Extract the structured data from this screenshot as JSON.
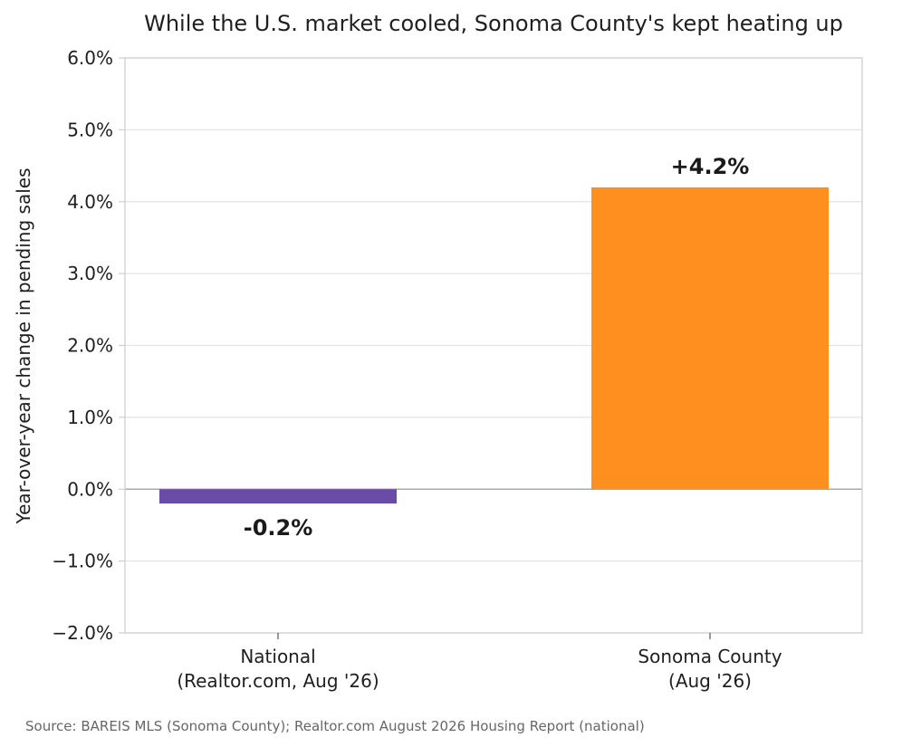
{
  "chart_data": {
    "type": "bar",
    "title": "While the U.S. market cooled, Sonoma County's kept heating up",
    "ylabel": "Year-over-year change in pending sales",
    "xlabel": "",
    "categories": [
      [
        "National",
        "(Realtor.com, Aug '26)"
      ],
      [
        "Sonoma County",
        "(Aug '26)"
      ]
    ],
    "values": [
      -0.2,
      4.2
    ],
    "data_labels": [
      "-0.2%",
      "+4.2%"
    ],
    "bar_colors": [
      "#6a4ca8",
      "#ff9020"
    ],
    "ylim": [
      -2.0,
      6.0
    ],
    "yticks": [
      -2.0,
      -1.0,
      0.0,
      1.0,
      2.0,
      3.0,
      4.0,
      5.0,
      6.0
    ],
    "ytick_labels": [
      "−2.0%",
      "−1.0%",
      "0.0%",
      "1.0%",
      "2.0%",
      "3.0%",
      "4.0%",
      "5.0%",
      "6.0%"
    ],
    "grid": true,
    "legend": "none"
  },
  "source_note": "Source: BAREIS MLS (Sonoma County); Realtor.com August 2026 Housing Report (national)"
}
